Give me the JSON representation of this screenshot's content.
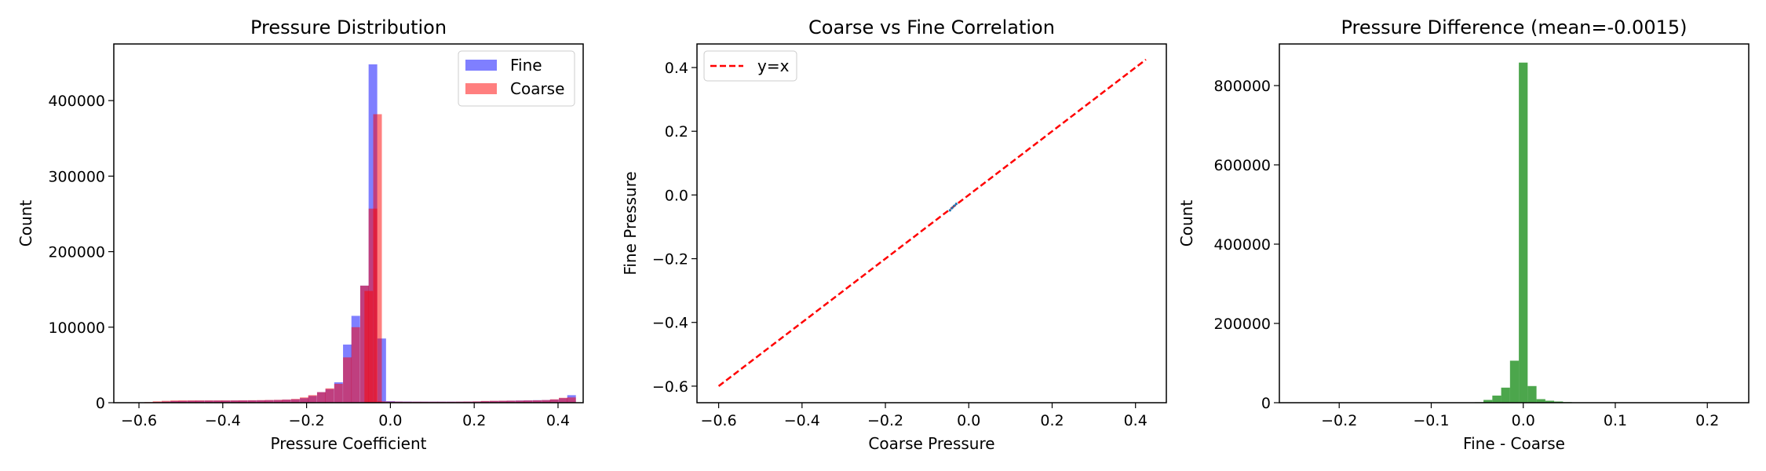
{
  "figure": {
    "background": "#ffffff"
  },
  "chart_data": [
    {
      "type": "bar",
      "title": "Pressure Distribution",
      "xlabel": "Pressure Coefficient",
      "ylabel": "Count",
      "xlim": [
        -0.66,
        0.46
      ],
      "ylim": [
        0,
        475000
      ],
      "xticks": [
        -0.6,
        -0.4,
        -0.2,
        0.0,
        0.2,
        0.4
      ],
      "xtick_labels": [
        "−0.6",
        "−0.4",
        "−0.2",
        "0.0",
        "0.2",
        "0.4"
      ],
      "yticks": [
        0,
        100000,
        200000,
        300000,
        400000
      ],
      "ytick_labels": [
        "0",
        "100000",
        "200000",
        "300000",
        "400000"
      ],
      "legend_position": "top-right",
      "bin_width": 0.0206,
      "series": [
        {
          "name": "Fine",
          "color": "#0000ff",
          "alpha": 0.5,
          "bins": [
            [
              -0.608,
              100
            ],
            [
              -0.587,
              300
            ],
            [
              -0.567,
              800
            ],
            [
              -0.546,
              1500
            ],
            [
              -0.525,
              2200
            ],
            [
              -0.505,
              2400
            ],
            [
              -0.484,
              2600
            ],
            [
              -0.464,
              2700
            ],
            [
              -0.443,
              2800
            ],
            [
              -0.422,
              2800
            ],
            [
              -0.402,
              2800
            ],
            [
              -0.381,
              2900
            ],
            [
              -0.361,
              3000
            ],
            [
              -0.34,
              3100
            ],
            [
              -0.319,
              3200
            ],
            [
              -0.299,
              3400
            ],
            [
              -0.278,
              3600
            ],
            [
              -0.258,
              4000
            ],
            [
              -0.237,
              4500
            ],
            [
              -0.216,
              6000
            ],
            [
              -0.196,
              9000
            ],
            [
              -0.175,
              14000
            ],
            [
              -0.155,
              18000
            ],
            [
              -0.134,
              27000
            ],
            [
              -0.113,
              77000
            ],
            [
              -0.093,
              115000
            ],
            [
              -0.072,
              155000
            ],
            [
              -0.052,
              448000
            ],
            [
              -0.031,
              85000
            ],
            [
              -0.01,
              2000
            ],
            [
              0.01,
              1600
            ],
            [
              0.031,
              1500
            ],
            [
              0.052,
              1400
            ],
            [
              0.072,
              1400
            ],
            [
              0.093,
              1400
            ],
            [
              0.113,
              1400
            ],
            [
              0.134,
              1400
            ],
            [
              0.155,
              1400
            ],
            [
              0.175,
              1500
            ],
            [
              0.196,
              1600
            ],
            [
              0.216,
              2000
            ],
            [
              0.237,
              2300
            ],
            [
              0.258,
              2500
            ],
            [
              0.278,
              2700
            ],
            [
              0.299,
              2900
            ],
            [
              0.319,
              3100
            ],
            [
              0.34,
              3300
            ],
            [
              0.361,
              3500
            ],
            [
              0.381,
              4200
            ],
            [
              0.402,
              6000
            ],
            [
              0.422,
              10000
            ]
          ]
        },
        {
          "name": "Coarse",
          "color": "#ff0000",
          "alpha": 0.5,
          "bins": [
            [
              -0.587,
              800
            ],
            [
              -0.567,
              1800
            ],
            [
              -0.546,
              2500
            ],
            [
              -0.525,
              3000
            ],
            [
              -0.505,
              3100
            ],
            [
              -0.484,
              3100
            ],
            [
              -0.464,
              3100
            ],
            [
              -0.443,
              3100
            ],
            [
              -0.422,
              3100
            ],
            [
              -0.402,
              3100
            ],
            [
              -0.381,
              3100
            ],
            [
              -0.361,
              3200
            ],
            [
              -0.34,
              3300
            ],
            [
              -0.319,
              3400
            ],
            [
              -0.299,
              3600
            ],
            [
              -0.278,
              3800
            ],
            [
              -0.258,
              4200
            ],
            [
              -0.237,
              5000
            ],
            [
              -0.216,
              7000
            ],
            [
              -0.196,
              10000
            ],
            [
              -0.175,
              14000
            ],
            [
              -0.155,
              19000
            ],
            [
              -0.134,
              25000
            ],
            [
              -0.113,
              60000
            ],
            [
              -0.093,
              100000
            ],
            [
              -0.072,
              155000
            ],
            [
              -0.062,
              148000
            ],
            [
              -0.052,
              257000
            ],
            [
              -0.041,
              382000
            ],
            [
              -0.031,
              1800
            ],
            [
              -0.01,
              1500
            ],
            [
              0.01,
              1400
            ],
            [
              0.031,
              1300
            ],
            [
              0.052,
              1300
            ],
            [
              0.072,
              1300
            ],
            [
              0.093,
              1300
            ],
            [
              0.113,
              1300
            ],
            [
              0.134,
              1300
            ],
            [
              0.155,
              1400
            ],
            [
              0.175,
              1500
            ],
            [
              0.196,
              1700
            ],
            [
              0.216,
              2300
            ],
            [
              0.237,
              2500
            ],
            [
              0.258,
              2600
            ],
            [
              0.278,
              2700
            ],
            [
              0.299,
              2800
            ],
            [
              0.319,
              3000
            ],
            [
              0.34,
              3200
            ],
            [
              0.361,
              3500
            ],
            [
              0.381,
              4500
            ],
            [
              0.402,
              6500
            ],
            [
              0.422,
              7000
            ]
          ]
        }
      ]
    },
    {
      "type": "line",
      "title": "Coarse vs Fine Correlation",
      "xlabel": "Coarse Pressure",
      "ylabel": "Fine Pressure",
      "xlim": [
        -0.652,
        0.474
      ],
      "ylim": [
        -0.652,
        0.474
      ],
      "xticks": [
        -0.6,
        -0.4,
        -0.2,
        0.0,
        0.2,
        0.4
      ],
      "xtick_labels": [
        "−0.6",
        "−0.4",
        "−0.2",
        "0.0",
        "0.2",
        "0.4"
      ],
      "yticks": [
        -0.6,
        -0.4,
        -0.2,
        0.0,
        0.2,
        0.4
      ],
      "ytick_labels": [
        "−0.6",
        "−0.4",
        "−0.2",
        "0.0",
        "0.2",
        "0.4"
      ],
      "legend_position": "top-left",
      "series": [
        {
          "name": "y=x",
          "color": "#ff0000",
          "style": "dashed",
          "x": [
            -0.6,
            0.425
          ],
          "y": [
            -0.6,
            0.425
          ]
        }
      ],
      "scatter": {
        "color": "#1f77b4",
        "x": [
          -0.045,
          -0.04,
          -0.035,
          -0.03
        ],
        "y": [
          -0.048,
          -0.041,
          -0.034,
          -0.028
        ]
      }
    },
    {
      "type": "bar",
      "title": "Pressure Difference (mean=-0.0015)",
      "xlabel": "Fine - Coarse",
      "ylabel": "Count",
      "xlim": [
        -0.265,
        0.245
      ],
      "ylim": [
        0,
        905000
      ],
      "xticks": [
        -0.2,
        -0.1,
        0.0,
        0.1,
        0.2
      ],
      "xtick_labels": [
        "−0.2",
        "−0.1",
        "0.0",
        "0.1",
        "0.2"
      ],
      "yticks": [
        0,
        200000,
        400000,
        600000,
        800000
      ],
      "ytick_labels": [
        "0",
        "200000",
        "400000",
        "600000",
        "800000"
      ],
      "bin_width": 0.0096,
      "series": [
        {
          "name": "",
          "color": "#008000",
          "alpha": 0.7,
          "bins": [
            [
              -0.0624,
              300
            ],
            [
              -0.0528,
              1200
            ],
            [
              -0.0432,
              7000
            ],
            [
              -0.0336,
              18000
            ],
            [
              -0.024,
              38000
            ],
            [
              -0.0144,
              106000
            ],
            [
              -0.0048,
              858000
            ],
            [
              0.0048,
              42000
            ],
            [
              0.0144,
              9000
            ],
            [
              0.024,
              5000
            ],
            [
              0.0336,
              3000
            ],
            [
              0.0432,
              1500
            ],
            [
              0.0528,
              600
            ],
            [
              0.0624,
              200
            ]
          ]
        }
      ]
    }
  ]
}
